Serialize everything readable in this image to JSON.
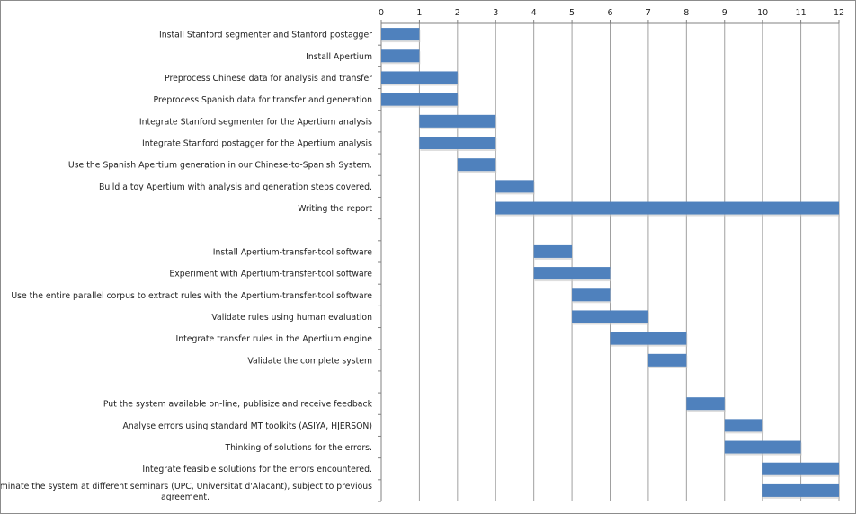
{
  "chart_data": {
    "type": "bar",
    "orientation": "horizontal-gantt",
    "title": "",
    "xlabel": "",
    "ylabel": "",
    "xlim": [
      0,
      12
    ],
    "x_ticks": [
      "0",
      "1",
      "2",
      "3",
      "4",
      "5",
      "6",
      "7",
      "8",
      "9",
      "10",
      "11",
      "12"
    ],
    "x_axis_position": "top",
    "grid": "vertical",
    "bar_color": "#4f81bd",
    "tasks": [
      {
        "label": "Install Stanford segmenter and Stanford postagger",
        "start": 0,
        "end": 1
      },
      {
        "label": "Install  Apertium",
        "start": 0,
        "end": 1
      },
      {
        "label": "Preprocess Chinese data for analysis  and transfer",
        "start": 0,
        "end": 2
      },
      {
        "label": "Preprocess Spanish data  for transfer and generation",
        "start": 0,
        "end": 2
      },
      {
        "label": "Integrate Stanford segmenter for the Apertium analysis",
        "start": 1,
        "end": 3
      },
      {
        "label": "Integrate Stanford postagger for the Apertium analysis",
        "start": 1,
        "end": 3
      },
      {
        "label": "Use the Spanish Apertium generation in our Chinese-to-Spanish System.",
        "start": 2,
        "end": 3
      },
      {
        "label": "Build a toy Apertium with analysis and generation steps covered.",
        "start": 3,
        "end": 4
      },
      {
        "label": "Writing the report",
        "start": 3,
        "end": 12
      },
      {
        "label": "",
        "start": null,
        "end": null
      },
      {
        "label": "Install Apertium-transfer-tool software",
        "start": 4,
        "end": 5
      },
      {
        "label": "Experiment with Apertium-transfer-tool  software",
        "start": 4,
        "end": 6
      },
      {
        "label": "Use the  entire parallel corpus to extract rules with the Apertium-transfer-tool software",
        "start": 5,
        "end": 6
      },
      {
        "label": "Validate rules using human evaluation",
        "start": 5,
        "end": 7
      },
      {
        "label": "Integrate transfer rules in the Apertium engine",
        "start": 6,
        "end": 8
      },
      {
        "label": "Validate the complete system",
        "start": 7,
        "end": 8
      },
      {
        "label": "",
        "start": null,
        "end": null
      },
      {
        "label": "Put the system available on-line, publisize and  receive feedback",
        "start": 8,
        "end": 9
      },
      {
        "label": "Analyse errors using standard  MT toolkits (ASIYA,  HJERSON)",
        "start": 9,
        "end": 10
      },
      {
        "label": "Thinking of solutions for the errors.",
        "start": 9,
        "end": 11
      },
      {
        "label": "Integrate feasible solutions for the errors encountered.",
        "start": 10,
        "end": 12
      },
      {
        "label": "Disseminate the system at different seminars (UPC, Universitat d'Alacant), subject to previous agreement.",
        "label_lines": [
          "Disseminate  the system at different seminars (UPC, Universitat  d'Alacant), subject to previous",
          "agreement."
        ],
        "start": 10,
        "end": 12
      }
    ]
  }
}
